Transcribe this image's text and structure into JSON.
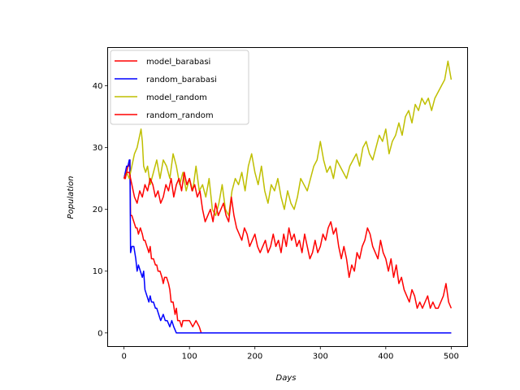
{
  "chart_data": {
    "type": "line",
    "title": "",
    "xlabel": "Days",
    "ylabel": "Population",
    "xlim": [
      -25,
      525
    ],
    "ylim": [
      -2.2,
      46.2
    ],
    "xticks": [
      0,
      100,
      200,
      300,
      400,
      500
    ],
    "yticks": [
      0,
      10,
      20,
      30,
      40
    ],
    "grid": false,
    "legend_position": "upper-left",
    "series": [
      {
        "name": "model_barabasi",
        "color": "#ff0000",
        "x": [
          0,
          2,
          4,
          6,
          8,
          9,
          10,
          12,
          15,
          18,
          20,
          22,
          25,
          28,
          30,
          32,
          35,
          38,
          40,
          42,
          45,
          48,
          50,
          52,
          55,
          58,
          60,
          62,
          65,
          68,
          70,
          72,
          75,
          78,
          80,
          82,
          85,
          88,
          90,
          92,
          95,
          100,
          105,
          110,
          115,
          118,
          120,
          200,
          300,
          400,
          500
        ],
        "y": [
          25,
          25,
          26,
          27,
          27,
          28,
          19,
          19,
          18,
          17,
          17,
          16,
          17,
          16,
          15,
          15,
          14,
          13,
          14,
          12,
          12,
          11,
          11,
          10,
          10,
          9,
          8,
          9,
          9,
          8,
          7,
          5,
          5,
          3,
          4,
          2,
          2,
          1,
          2,
          2,
          2,
          2,
          1,
          2,
          1,
          0,
          0,
          0,
          0,
          0,
          0
        ]
      },
      {
        "name": "random_barabasi",
        "color": "#0000ff",
        "x": [
          0,
          2,
          4,
          6,
          8,
          9,
          10,
          12,
          15,
          18,
          20,
          22,
          25,
          28,
          30,
          32,
          35,
          38,
          40,
          42,
          45,
          48,
          50,
          53,
          56,
          60,
          63,
          66,
          70,
          73,
          76,
          80,
          85,
          90,
          100,
          200,
          300,
          400,
          500
        ],
        "y": [
          25,
          26,
          27,
          27,
          28,
          28,
          13,
          14,
          14,
          12,
          10,
          11,
          10,
          9,
          10,
          7,
          6,
          5,
          6,
          5,
          5,
          4,
          4,
          3,
          2,
          3,
          2,
          2,
          1,
          2,
          1,
          0,
          0,
          0,
          0,
          0,
          0,
          0,
          0
        ]
      },
      {
        "name": "model_random",
        "color": "#bfbf00",
        "x": [
          0,
          4,
          8,
          12,
          16,
          20,
          22,
          24,
          26,
          28,
          30,
          33,
          36,
          40,
          45,
          50,
          55,
          60,
          65,
          70,
          75,
          80,
          85,
          90,
          95,
          100,
          105,
          110,
          115,
          120,
          125,
          130,
          135,
          140,
          145,
          150,
          155,
          160,
          165,
          170,
          175,
          180,
          185,
          190,
          195,
          200,
          205,
          210,
          215,
          220,
          225,
          230,
          235,
          240,
          245,
          250,
          255,
          260,
          265,
          270,
          275,
          280,
          285,
          290,
          295,
          300,
          305,
          310,
          315,
          320,
          325,
          330,
          335,
          340,
          345,
          350,
          355,
          360,
          365,
          370,
          375,
          380,
          385,
          390,
          395,
          400,
          405,
          410,
          415,
          420,
          425,
          430,
          435,
          440,
          445,
          450,
          455,
          460,
          465,
          470,
          475,
          480,
          485,
          490,
          495,
          500
        ],
        "y": [
          25,
          26,
          25,
          27,
          29,
          30,
          31,
          32,
          33,
          31,
          27,
          26,
          27,
          24,
          26,
          28,
          25,
          28,
          27,
          25,
          29,
          27,
          24,
          26,
          23,
          25,
          23,
          27,
          23,
          24,
          22,
          25,
          20,
          19,
          21,
          24,
          20,
          19,
          23,
          25,
          24,
          26,
          23,
          27,
          29,
          26,
          24,
          27,
          23,
          21,
          24,
          23,
          25,
          22,
          20,
          23,
          21,
          20,
          22,
          25,
          24,
          23,
          25,
          27,
          28,
          31,
          28,
          26,
          27,
          25,
          28,
          27,
          26,
          25,
          27,
          28,
          29,
          27,
          30,
          31,
          29,
          28,
          30,
          32,
          31,
          33,
          29,
          31,
          32,
          34,
          32,
          35,
          36,
          34,
          37,
          36,
          38,
          37,
          38,
          36,
          38,
          39,
          40,
          41,
          44,
          41
        ]
      },
      {
        "name": "random_random",
        "color": "#ff0000",
        "x": [
          0,
          4,
          8,
          12,
          16,
          20,
          24,
          28,
          32,
          36,
          40,
          44,
          48,
          52,
          56,
          60,
          64,
          68,
          72,
          76,
          80,
          84,
          88,
          92,
          96,
          100,
          104,
          108,
          112,
          116,
          120,
          124,
          128,
          132,
          136,
          140,
          144,
          148,
          152,
          156,
          160,
          164,
          168,
          172,
          176,
          180,
          184,
          188,
          192,
          196,
          200,
          204,
          208,
          212,
          216,
          220,
          224,
          228,
          232,
          236,
          240,
          244,
          248,
          252,
          256,
          260,
          264,
          268,
          272,
          276,
          280,
          284,
          288,
          292,
          296,
          300,
          304,
          308,
          312,
          316,
          320,
          324,
          328,
          332,
          336,
          340,
          344,
          348,
          352,
          356,
          360,
          364,
          368,
          372,
          376,
          380,
          384,
          388,
          392,
          396,
          400,
          404,
          408,
          412,
          416,
          420,
          424,
          428,
          432,
          436,
          440,
          444,
          448,
          452,
          456,
          460,
          464,
          468,
          472,
          476,
          480,
          484,
          488,
          492,
          496,
          500
        ],
        "y": [
          25,
          26,
          26,
          24,
          22,
          21,
          23,
          22,
          24,
          23,
          25,
          24,
          22,
          23,
          21,
          22,
          24,
          23,
          25,
          22,
          24,
          25,
          23,
          26,
          24,
          25,
          23,
          24,
          22,
          23,
          20,
          18,
          19,
          20,
          18,
          21,
          19,
          20,
          21,
          19,
          18,
          22,
          19,
          17,
          16,
          15,
          17,
          16,
          14,
          15,
          16,
          14,
          13,
          14,
          15,
          13,
          14,
          16,
          14,
          15,
          13,
          16,
          14,
          17,
          15,
          16,
          14,
          15,
          13,
          16,
          14,
          12,
          13,
          15,
          13,
          14,
          16,
          15,
          17,
          18,
          16,
          17,
          14,
          12,
          14,
          12,
          9,
          11,
          10,
          13,
          12,
          14,
          15,
          17,
          16,
          14,
          13,
          12,
          15,
          13,
          12,
          10,
          12,
          9,
          11,
          8,
          9,
          7,
          6,
          5,
          7,
          6,
          4,
          5,
          4,
          5,
          6,
          4,
          5,
          4,
          4,
          5,
          6,
          8,
          5,
          4
        ]
      }
    ]
  }
}
